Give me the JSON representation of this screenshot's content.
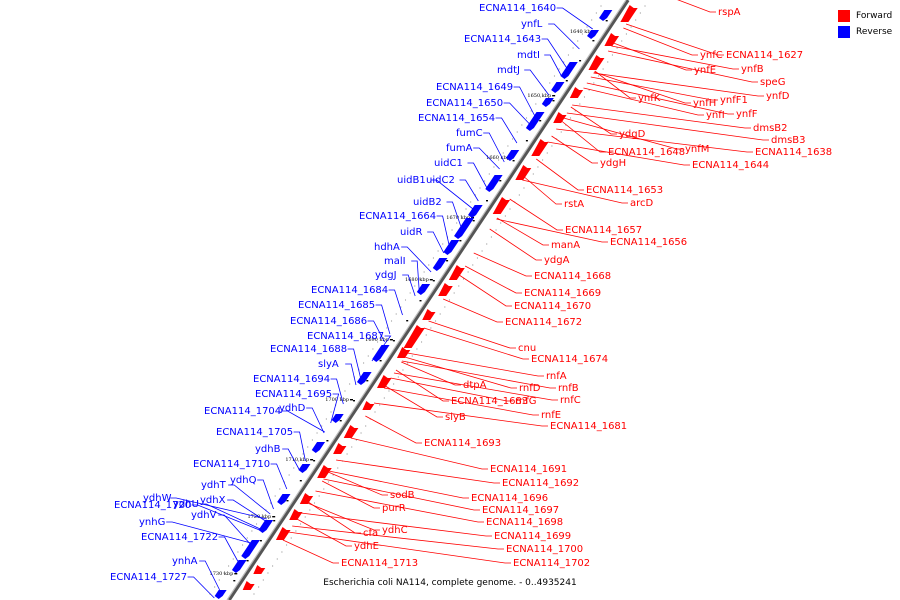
{
  "title": "Escherichia coli NA114, complete genome. - 0..4935241",
  "legend": [
    {
      "label": "Forward",
      "color": "#ff0000"
    },
    {
      "label": "Reverse",
      "color": "#0000ff"
    }
  ],
  "colors": {
    "forward": "#ff0000",
    "reverse": "#0000ff",
    "axis": "#808080"
  },
  "ticks": [
    "1640 kbp",
    "1650 kbp",
    "1660 kbp",
    "1670 kbp",
    "1680 kbp",
    "1690 kbp",
    "1700 kbp",
    "1710 kbp",
    "1720 kbp",
    "1730 kbp"
  ],
  "reverse_labels": [
    "ECNA114_1640",
    "ynfL",
    "ECNA114_1643",
    "mdtI",
    "mdtJ",
    "ECNA114_1649",
    "ECNA114_1650",
    "ECNA114_1654",
    "fumC",
    "fumA",
    "uidC1",
    "uidB1",
    "uidC2",
    "uidB2",
    "ECNA114_1664",
    "uidR",
    "hdhA",
    "malI",
    "ydgJ",
    "ECNA114_1684",
    "ECNA114_1685",
    "ECNA114_1686",
    "ECNA114_1687",
    "ECNA114_1688",
    "slyA",
    "ECNA114_1694",
    "ECNA114_1695",
    "ECNA114_1704",
    "ydhD",
    "ECNA114_1705",
    "ydhB",
    "ECNA114_1710",
    "ydhQ",
    "ydhW",
    "ydhU",
    "ydhT",
    "ydhX",
    "ECNA114_1720",
    "ydhV",
    "ynhG",
    "ECNA114_1722",
    "ynhA",
    "ECNA114_1727"
  ],
  "forward_labels": [
    "rspA",
    "ynfC",
    "ECNA114_1627",
    "ynfB",
    "ynfE",
    "speG",
    "ynfD",
    "ynfK",
    "ynfH",
    "ynfF1",
    "ynfI",
    "ynfF",
    "dmsB2",
    "dmsB3",
    "ynfM",
    "ECNA114_1638",
    "ydgD",
    "ECNA114_1648",
    "ECNA114_1644",
    "ydgH",
    "ECNA114_1653",
    "arcD",
    "rstA",
    "ECNA114_1657",
    "ECNA114_1656",
    "manA",
    "ydgA",
    "ECNA114_1668",
    "ECNA114_1669",
    "ECNA114_1670",
    "ECNA114_1672",
    "cnu",
    "ECNA114_1674",
    "rnfA",
    "rnfB",
    "rnfD",
    "dtpA",
    "rnfC",
    "ECNA114_1683",
    "rnfG",
    "rnfE",
    "slyB",
    "ECNA114_1681",
    "ECNA114_1693",
    "ECNA114_1691",
    "ECNA114_1692",
    "ECNA114_1696",
    "ECNA114_1697",
    "sodB",
    "purR",
    "ECNA114_1698",
    "ECNA114_1699",
    "ydhC",
    "cfa",
    "ECNA114_1700",
    "ydhE",
    "ECNA114_1702",
    "ECNA114_1713"
  ]
}
